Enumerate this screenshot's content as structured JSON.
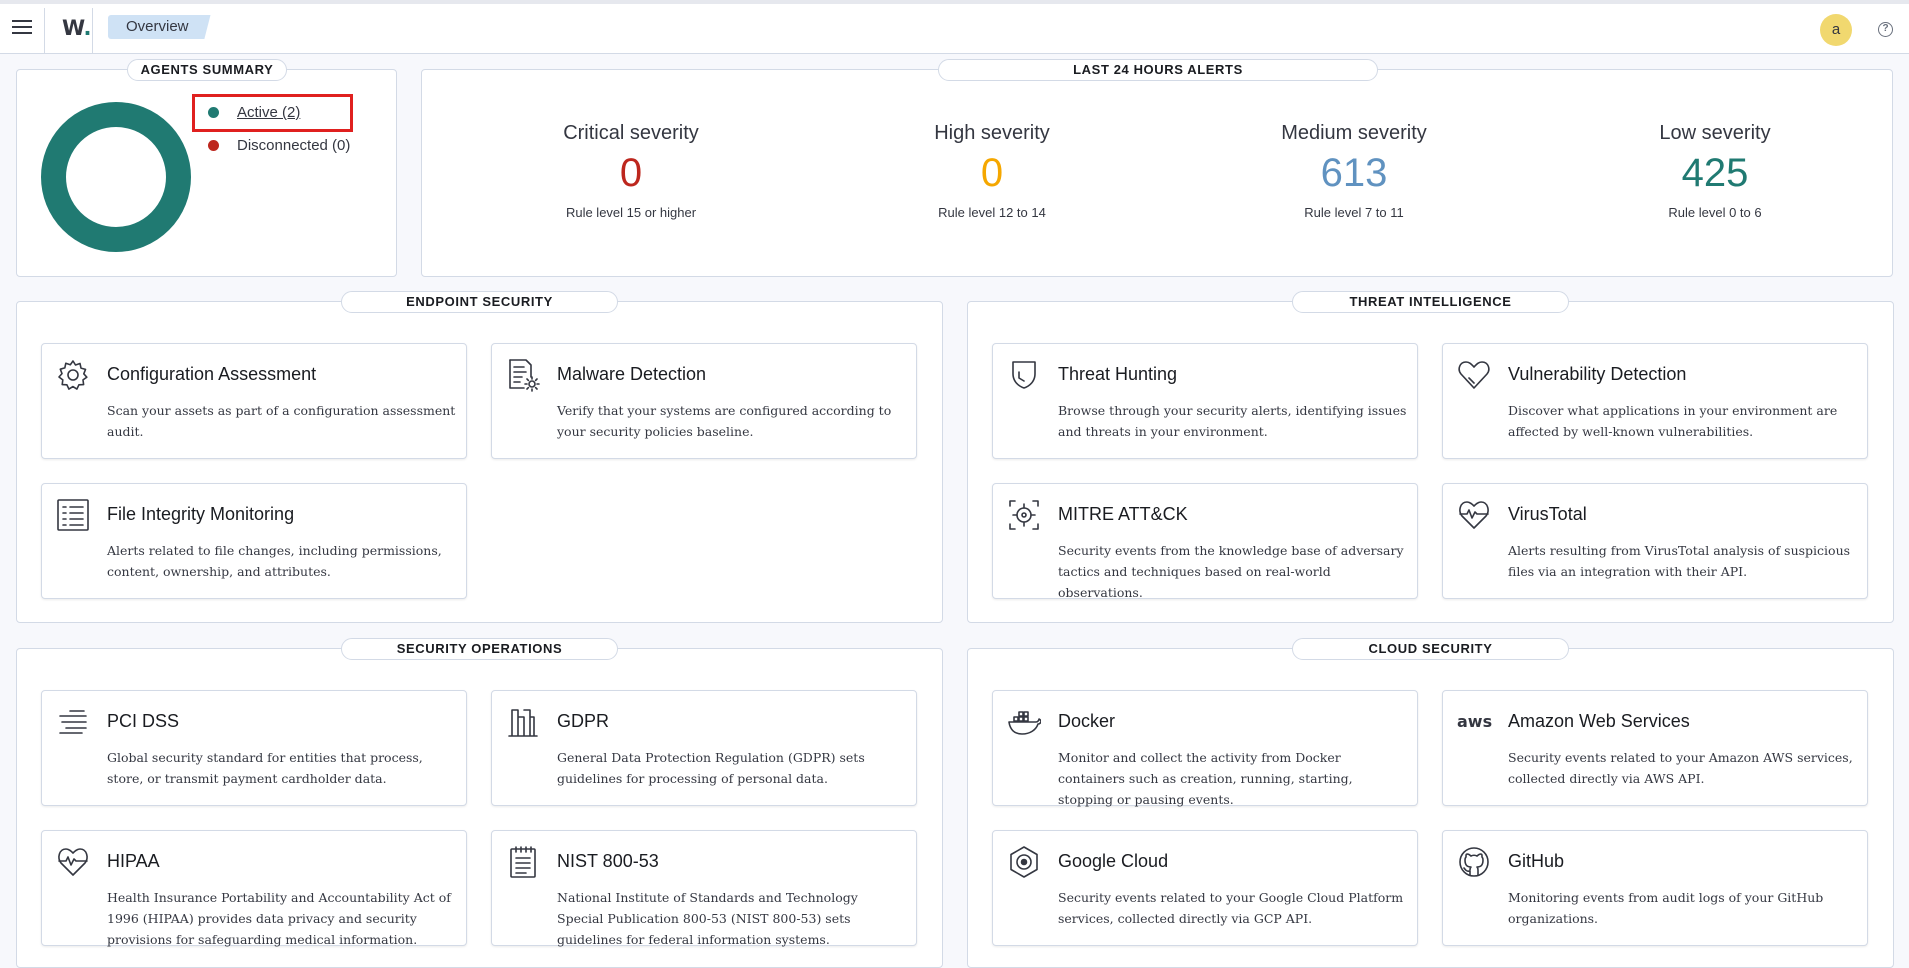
{
  "header": {
    "logo_text": "W",
    "breadcrumb": "Overview",
    "avatar_initial": "a",
    "help_glyph": "?"
  },
  "agents_summary": {
    "title": "AGENTS SUMMARY",
    "active_label": "Active (2)",
    "disconnected_label": "Disconnected (0)",
    "active_count": 2,
    "disconnected_count": 0,
    "active_color": "#207a72",
    "disconnected_color": "#bd271e"
  },
  "alerts": {
    "title": "LAST 24 HOURS ALERTS",
    "severities": [
      {
        "label": "Critical severity",
        "value": "0",
        "rule": "Rule level 15 or higher",
        "color": "#bd271e"
      },
      {
        "label": "High severity",
        "value": "0",
        "rule": "Rule level 12 to 14",
        "color": "#f5a700"
      },
      {
        "label": "Medium severity",
        "value": "613",
        "rule": "Rule level 7 to 11",
        "color": "#6092c0"
      },
      {
        "label": "Low severity",
        "value": "425",
        "rule": "Rule level 0 to 6",
        "color": "#207a72"
      }
    ]
  },
  "sections": [
    {
      "title": "ENDPOINT SECURITY",
      "cards": [
        {
          "icon": "gear-icon",
          "title": "Configuration Assessment",
          "desc": "Scan your assets as part of a configuration assessment audit."
        },
        {
          "icon": "document-gear-icon",
          "title": "Malware Detection",
          "desc": "Verify that your systems are configured according to your security policies baseline."
        },
        {
          "icon": "list-document-icon",
          "title": "File Integrity Monitoring",
          "desc": "Alerts related to file changes, including permissions, content, ownership, and attributes."
        }
      ]
    },
    {
      "title": "THREAT INTELLIGENCE",
      "cards": [
        {
          "icon": "shield-icon",
          "title": "Threat Hunting",
          "desc": "Browse through your security alerts, identifying issues and threats in your environment."
        },
        {
          "icon": "heart-icon",
          "title": "Vulnerability Detection",
          "desc": "Discover what applications in your environment are affected by well-known vulnerabilities."
        },
        {
          "icon": "target-icon",
          "title": "MITRE ATT&CK",
          "desc": "Security events from the knowledge base of adversary tactics and techniques based on real-world observations."
        },
        {
          "icon": "heartbeat-icon",
          "title": "VirusTotal",
          "desc": "Alerts resulting from VirusTotal analysis of suspicious files via an integration with their API."
        }
      ]
    },
    {
      "title": "SECURITY OPERATIONS",
      "cards": [
        {
          "icon": "lines-icon",
          "title": "PCI DSS",
          "desc": "Global security standard for entities that process, store, or transmit payment cardholder data."
        },
        {
          "icon": "building-icon",
          "title": "GDPR",
          "desc": "General Data Protection Regulation (GDPR) sets guidelines for processing of personal data."
        },
        {
          "icon": "heartbeat-icon",
          "title": "HIPAA",
          "desc": "Health Insurance Portability and Accountability Act of 1996 (HIPAA) provides data privacy and security provisions for safeguarding medical information."
        },
        {
          "icon": "notepad-icon",
          "title": "NIST 800-53",
          "desc": "National Institute of Standards and Technology Special Publication 800-53 (NIST 800-53) sets guidelines for federal information systems."
        }
      ]
    },
    {
      "title": "CLOUD SECURITY",
      "cards": [
        {
          "icon": "docker-icon",
          "title": "Docker",
          "desc": "Monitor and collect the activity from Docker containers such as creation, running, starting, stopping or pausing events."
        },
        {
          "icon": "aws-icon",
          "title": "Amazon Web Services",
          "desc": "Security events related to your Amazon AWS services, collected directly via AWS API.",
          "icon_text": "aws"
        },
        {
          "icon": "google-cloud-icon",
          "title": "Google Cloud",
          "desc": "Security events related to your Google Cloud Platform services, collected directly via GCP API."
        },
        {
          "icon": "github-icon",
          "title": "GitHub",
          "desc": "Monitoring events from audit logs of your GitHub organizations."
        }
      ]
    }
  ]
}
